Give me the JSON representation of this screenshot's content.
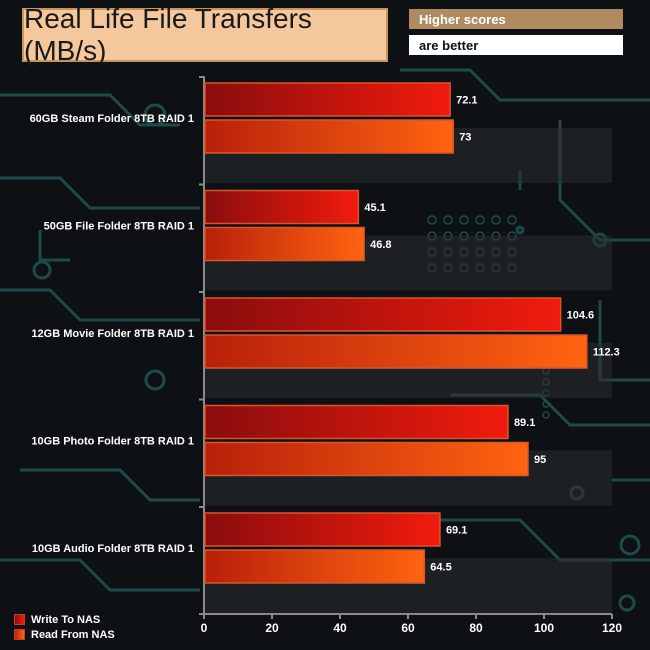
{
  "header": {
    "title": "Real Life File Transfers (MB/s)",
    "note_line1": "Higher scores",
    "note_line2": "are better"
  },
  "colors": {
    "background": "#0e1113",
    "circuit": "#1f4a4c",
    "write_dark": "#8a0d0d",
    "write_light": "#f21b0d",
    "read_dark": "#b8200a",
    "read_light": "#ff6410",
    "bar_border": "#d9552b",
    "label_text": "#ffffff"
  },
  "chart_data": {
    "type": "bar",
    "orientation": "horizontal",
    "categories": [
      "60GB Steam Folder 8TB RAID 1",
      "50GB File Folder 8TB RAID 1",
      "12GB Movie Folder 8TB RAID 1",
      "10GB Photo Folder 8TB RAID 1",
      "10GB Audio Folder 8TB RAID 1"
    ],
    "series": [
      {
        "name": "Write To NAS",
        "values": [
          72.1,
          45.1,
          104.6,
          89.1,
          69.1
        ],
        "value_labels": [
          "72.1",
          "45.1",
          "104.6",
          "89.1",
          "69.1"
        ]
      },
      {
        "name": "Read From NAS",
        "values": [
          73,
          46.8,
          112.3,
          95,
          64.5
        ],
        "value_labels": [
          "73",
          "46.8",
          "112.3",
          "95",
          "64.5"
        ]
      }
    ],
    "xlim": [
      0,
      120
    ],
    "xticks": [
      0,
      20,
      40,
      60,
      80,
      100,
      120
    ],
    "title": "Real Life File Transfers (MB/s)",
    "legend_position": "bottom-left",
    "grid": false
  }
}
